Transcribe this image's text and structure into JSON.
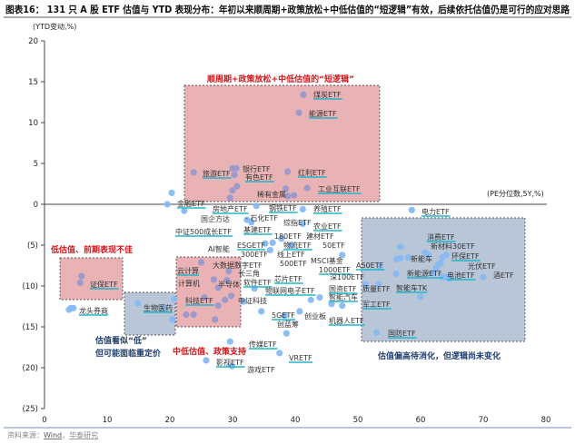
{
  "header": {
    "title": "图表16：  131 只 A 股 ETF 估值与 YTD 表现分布：年初以来顺周期+政策放松+中低估值的“短逻辑”有效，后续依托估值仍是可行的应对思路"
  },
  "footer": {
    "source_prefix": "资料来源：",
    "source_1": "Wind",
    "sep": "，",
    "source_2": "华泰研究"
  },
  "chart_data": {
    "type": "scatter",
    "title": "131 只 A 股 ETF 估值与 YTD 表现分布",
    "xlabel": "(PE分位数,5Y,%)",
    "ylabel": "(YTD变动,%)",
    "xlim": [
      0,
      80
    ],
    "ylim": [
      -25,
      20
    ],
    "x_ticks": [
      "0",
      "10",
      "20",
      "30",
      "40",
      "50",
      "60",
      "70",
      "80"
    ],
    "y_ticks": [
      "20",
      "15",
      "10",
      "5",
      "0",
      "(5)",
      "(10)",
      "(15)",
      "(20)",
      "(25)"
    ],
    "grid": false,
    "colors": {
      "highlight_dot": "#9a98cc",
      "dot": "#86bbf2",
      "red_box": "#e9b3b6",
      "blue_box": "#b9c6d8",
      "red_text": "#d0161b",
      "blue_text": "#1f3d6e",
      "underline": "#1fb5c9"
    },
    "points": [
      [
        41.3,
        13.4
      ],
      [
        40.6,
        11.2
      ],
      [
        23.8,
        3.9
      ],
      [
        30,
        4.4
      ],
      [
        30.6,
        4.4
      ],
      [
        30.3,
        3.6
      ],
      [
        30,
        1.7
      ],
      [
        30.7,
        2.2
      ],
      [
        29.6,
        0.8
      ],
      [
        38.8,
        4
      ],
      [
        41.9,
        2
      ],
      [
        38.5,
        1.9
      ],
      [
        39.8,
        1.1
      ],
      [
        38.8,
        1.0
      ],
      [
        20.3,
        1.4
      ],
      [
        19.6,
        0
      ],
      [
        22.3,
        -0.8
      ],
      [
        33.8,
        -0.2
      ],
      [
        41.2,
        -0.6
      ],
      [
        32.3,
        -1.9
      ],
      [
        33,
        -2.2
      ],
      [
        41.2,
        -2.4
      ],
      [
        37.8,
        -4.2
      ],
      [
        36.4,
        -4.7
      ],
      [
        35.2,
        -4.8
      ],
      [
        39.3,
        -5
      ],
      [
        36,
        -5.6
      ],
      [
        47.5,
        -6.2
      ],
      [
        25,
        -7.1
      ],
      [
        27,
        -9.2
      ],
      [
        27.7,
        -10.2
      ],
      [
        29.4,
        -8.2
      ],
      [
        29.1,
        -9.3
      ],
      [
        29.8,
        -11.2
      ],
      [
        28.8,
        -11.7
      ],
      [
        27.7,
        -12.4
      ],
      [
        25.5,
        -11.4
      ],
      [
        23.8,
        -13.5
      ],
      [
        22.6,
        -13.5
      ],
      [
        27.2,
        -14.1
      ],
      [
        20.4,
        -14.1
      ],
      [
        31.7,
        -11.9
      ],
      [
        33.5,
        -10.3
      ],
      [
        34.6,
        -13.1
      ],
      [
        38.3,
        -13.6
      ],
      [
        40.7,
        -13.1
      ],
      [
        42.5,
        -11.7
      ],
      [
        43.9,
        -11.4
      ],
      [
        45.8,
        -12.2
      ],
      [
        47.5,
        -12.4
      ],
      [
        38.6,
        -15.8
      ],
      [
        29.6,
        -16.8
      ],
      [
        37.5,
        -18.2
      ],
      [
        25.8,
        -19.1
      ],
      [
        29.9,
        -19.8
      ],
      [
        58.6,
        -0.7
      ],
      [
        56.8,
        -5.2
      ],
      [
        60.7,
        -5.9
      ],
      [
        61.3,
        -6.2
      ],
      [
        56.2,
        -6.7
      ],
      [
        56.8,
        -6.6
      ],
      [
        58,
        -6.5
      ],
      [
        63.5,
        -6.5
      ],
      [
        64.1,
        -6.2
      ],
      [
        62.8,
        -7.4
      ],
      [
        63.2,
        -7.2
      ],
      [
        62.5,
        -7.8
      ],
      [
        56.1,
        -8.5
      ],
      [
        62,
        -8.4
      ],
      [
        63.5,
        -8.9
      ],
      [
        63.9,
        -8.9
      ],
      [
        64.6,
        -9.1
      ],
      [
        70,
        -8.9
      ],
      [
        53.5,
        -7.6
      ],
      [
        51.2,
        -9.8
      ],
      [
        53.3,
        -9.8
      ],
      [
        60,
        -11.3
      ],
      [
        53,
        -15.7
      ],
      [
        5.9,
        -8.8
      ],
      [
        5.7,
        -9.6
      ],
      [
        3.9,
        -12.9
      ],
      [
        4.2,
        -12.7
      ],
      [
        4.6,
        -12.7
      ],
      [
        14.9,
        -12.1
      ],
      [
        19,
        -12.6
      ],
      [
        20.4,
        -14.1
      ],
      [
        20.7,
        -11.6
      ]
    ],
    "labels": [
      "煤炭ETF",
      "能源ETF",
      "旅游ETF",
      "银行ETF",
      "有色ETF",
      "红利ETF",
      "工业互联ETF",
      "稀有金属",
      "金融ETF",
      "房地产ETF",
      "国企方达",
      "- 石化ETF",
      "钢铁ETF",
      "养殖ETF",
      "综指ETF",
      "农业ETF",
      "中证500成长ETF",
      "基建ETF",
      "180ETF",
      "建材ETF",
      "物流ETF",
      "50ETF",
      "AI智能",
      "ESGETF",
      "300ETF",
      "线上ETF",
      "500ETF",
      "MSCI基金",
      "大数据数字ETF",
      "A50ETF",
      "云计算",
      "1000ETF",
      "长三角",
      "深100ETF",
      "计算机",
      "软件ETF",
      "芯片ETF",
      "半导体",
      "物联网电子ETF",
      "国资ETF",
      "质量ETF",
      "智能汽车",
      "科技ETF",
      "中证科技",
      "生物医药",
      "军工ETF",
      "5GETF",
      "创业板",
      "创蓝筹",
      "机器人ETF",
      "传媒ETF",
      "VRETF",
      "影视ETF",
      "游戏ETF",
      "电力ETF",
      "消费ETF",
      "新材料30ETF",
      "新能车",
      "环保ETF",
      "光伏ETF",
      "电池ETF",
      "酒ETF",
      "新能源ETF",
      "智能车TK",
      "国防ETF",
      "证保ETF",
      "龙头券商"
    ],
    "annotations": [
      "顺周期+政策放松+中低估值的“短逻辑”",
      "低估值、前期表现不佳",
      "估值看似“低”",
      "但可能面临重定价",
      "中低估值、政策支持",
      "估值偏高待消化，但逻辑尚未变化"
    ]
  }
}
